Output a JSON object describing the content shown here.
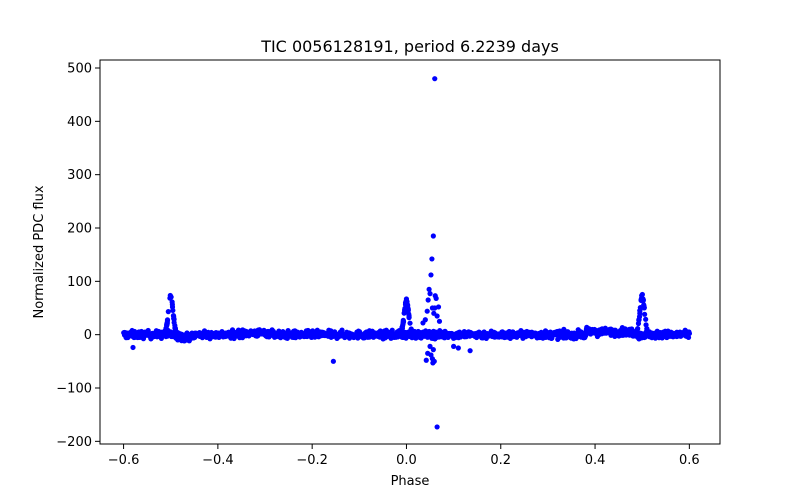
{
  "chart_data": {
    "type": "scatter",
    "title": "TIC 0056128191, period 6.2239 days",
    "xlabel": "Phase",
    "ylabel": "Normalized PDC flux",
    "xlim": [
      -0.65,
      0.665
    ],
    "ylim": [
      -205,
      515
    ],
    "xticks": [
      -0.6,
      -0.4,
      -0.2,
      0.0,
      0.2,
      0.4,
      0.6
    ],
    "xtick_labels": [
      "−0.6",
      "−0.4",
      "−0.2",
      "0.0",
      "0.2",
      "0.4",
      "0.6"
    ],
    "yticks": [
      -200,
      -100,
      0,
      100,
      200,
      300,
      400,
      500
    ],
    "ytick_labels": [
      "−200",
      "−100",
      "0",
      "100",
      "200",
      "300",
      "400",
      "500"
    ],
    "grid": false,
    "marker_color": "#0000ff",
    "baseline": {
      "x_range": [
        -0.6,
        0.6
      ],
      "center": 0,
      "scatter_range": [
        -12,
        14
      ],
      "note": "dense band of points along flux ~0 across all phases"
    },
    "features": [
      {
        "name": "primary-peak-left",
        "phase": -0.5,
        "peak": 72
      },
      {
        "name": "secondary-peak",
        "phase": 0.0,
        "peak": 62
      },
      {
        "name": "primary-peak-right",
        "phase": 0.5,
        "peak": 72
      }
    ],
    "outliers": [
      {
        "x": 0.06,
        "y": 480
      },
      {
        "x": 0.057,
        "y": 185
      },
      {
        "x": 0.054,
        "y": 142
      },
      {
        "x": 0.052,
        "y": 112
      },
      {
        "x": 0.048,
        "y": 85
      },
      {
        "x": 0.05,
        "y": 77
      },
      {
        "x": 0.061,
        "y": 73
      },
      {
        "x": 0.063,
        "y": 68
      },
      {
        "x": 0.046,
        "y": 65
      },
      {
        "x": 0.055,
        "y": 50
      },
      {
        "x": 0.06,
        "y": 50
      },
      {
        "x": 0.068,
        "y": 52
      },
      {
        "x": 0.044,
        "y": 44
      },
      {
        "x": 0.058,
        "y": 40
      },
      {
        "x": 0.065,
        "y": 35
      },
      {
        "x": 0.04,
        "y": 28
      },
      {
        "x": 0.07,
        "y": 25
      },
      {
        "x": 0.035,
        "y": 22
      },
      {
        "x": 0.05,
        "y": -22
      },
      {
        "x": 0.057,
        "y": -28
      },
      {
        "x": 0.045,
        "y": -35
      },
      {
        "x": 0.052,
        "y": -38
      },
      {
        "x": 0.055,
        "y": -45
      },
      {
        "x": 0.059,
        "y": -50
      },
      {
        "x": 0.056,
        "y": -53
      },
      {
        "x": 0.042,
        "y": -48
      },
      {
        "x": 0.1,
        "y": -22
      },
      {
        "x": 0.11,
        "y": -25
      },
      {
        "x": 0.135,
        "y": -30
      },
      {
        "x": -0.155,
        "y": -50
      },
      {
        "x": 0.065,
        "y": -173
      },
      {
        "x": -0.58,
        "y": -24
      }
    ]
  }
}
